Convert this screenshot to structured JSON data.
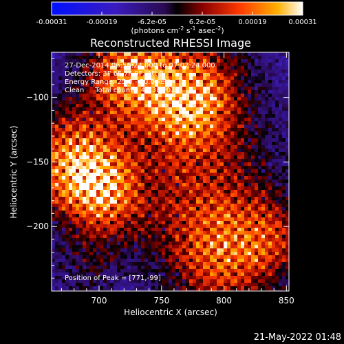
{
  "chart_data": {
    "type": "heatmap",
    "title": "Reconstructed RHESSI Image",
    "xlabel": "Heliocentric X (arcsec)",
    "ylabel": "Heliocentric Y (arcsec)",
    "xlim": [
      662,
      852
    ],
    "ylim": [
      -250,
      -65
    ],
    "xticks": [
      700,
      750,
      800,
      850
    ],
    "yticks": [
      -100,
      -150,
      -200
    ],
    "colorbar": {
      "min": -0.00031,
      "max": 0.00031,
      "ticks": [
        "-0.00031",
        "-0.00019",
        "-6.2e-05",
        "6.2e-05",
        "0.00019",
        "0.00031"
      ],
      "label": "(photons cm",
      "label_sup1": "-2",
      "label_mid": " s",
      "label_sup2": "-1",
      "label_mid2": " asec",
      "label_sup3": "-2",
      "label_end": ")"
    },
    "annotations": {
      "time_range": "27-Dec-2014 06:56:24.000 to 07:02:24.000",
      "detectors": "Detectors: 3F 6F 7F 9F, Att 0",
      "energy_range": "Energy Range: 25.0 - 50.0 keV",
      "method_counts": "Clean     Total counts: 4.13E+03",
      "peak": "Position of Peak = [771,-99]"
    },
    "footer_date": "21-May-2022 01:48"
  }
}
